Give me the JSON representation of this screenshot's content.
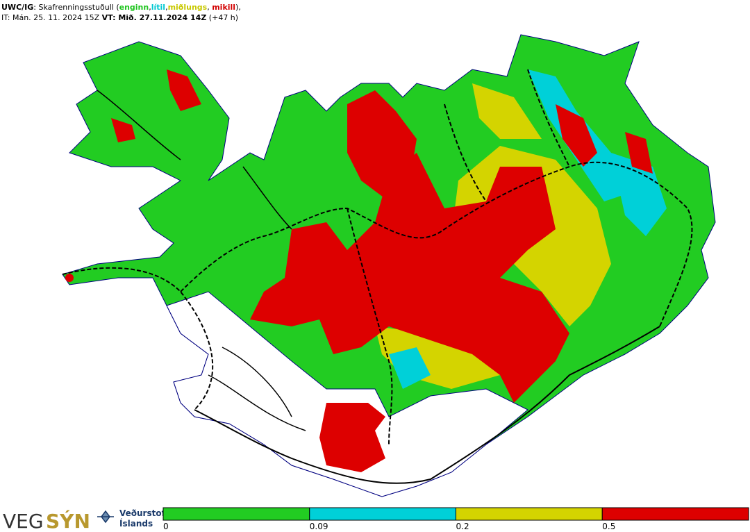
{
  "header": {
    "line1": [
      {
        "text": "UWC/IG",
        "bold": true,
        "color": "#000000"
      },
      {
        "text": ": Skafrenningsstuðull (",
        "bold": false,
        "color": "#000000"
      },
      {
        "text": "enginn",
        "bold": true,
        "color": "#1fc41f"
      },
      {
        "text": ",",
        "bold": false,
        "color": "#000000"
      },
      {
        "text": "lítil",
        "bold": true,
        "color": "#00c8d2"
      },
      {
        "text": ",",
        "bold": false,
        "color": "#000000"
      },
      {
        "text": "miðlungs",
        "bold": true,
        "color": "#c8c800"
      },
      {
        "text": ", ",
        "bold": false,
        "color": "#000000"
      },
      {
        "text": "mikill",
        "bold": true,
        "color": "#d20000"
      },
      {
        "text": "),",
        "bold": false,
        "color": "#000000"
      }
    ],
    "line2": [
      {
        "text": "IT: Mán. 25. 11. 2024 15Z ",
        "bold": false,
        "color": "#000000"
      },
      {
        "text": "VT:",
        "bold": true,
        "color": "#000000"
      },
      {
        "text": " Mið. 27.11.2024 14Z",
        "bold": true,
        "color": "#000000"
      },
      {
        "text": " (+47 h)",
        "bold": false,
        "color": "#000000"
      }
    ]
  },
  "logos": {
    "vegsyn_1": "VEG",
    "vegsyn_2": "SÝN",
    "vedurstofa_1": "Veðurstofa",
    "vedurstofa_2": "Íslands"
  },
  "legend": {
    "ticks": [
      0,
      0.09,
      0.2,
      0.5
    ],
    "colors": [
      "#22cc22",
      "#00d0d8",
      "#d4d400",
      "#dd0000"
    ]
  }
}
